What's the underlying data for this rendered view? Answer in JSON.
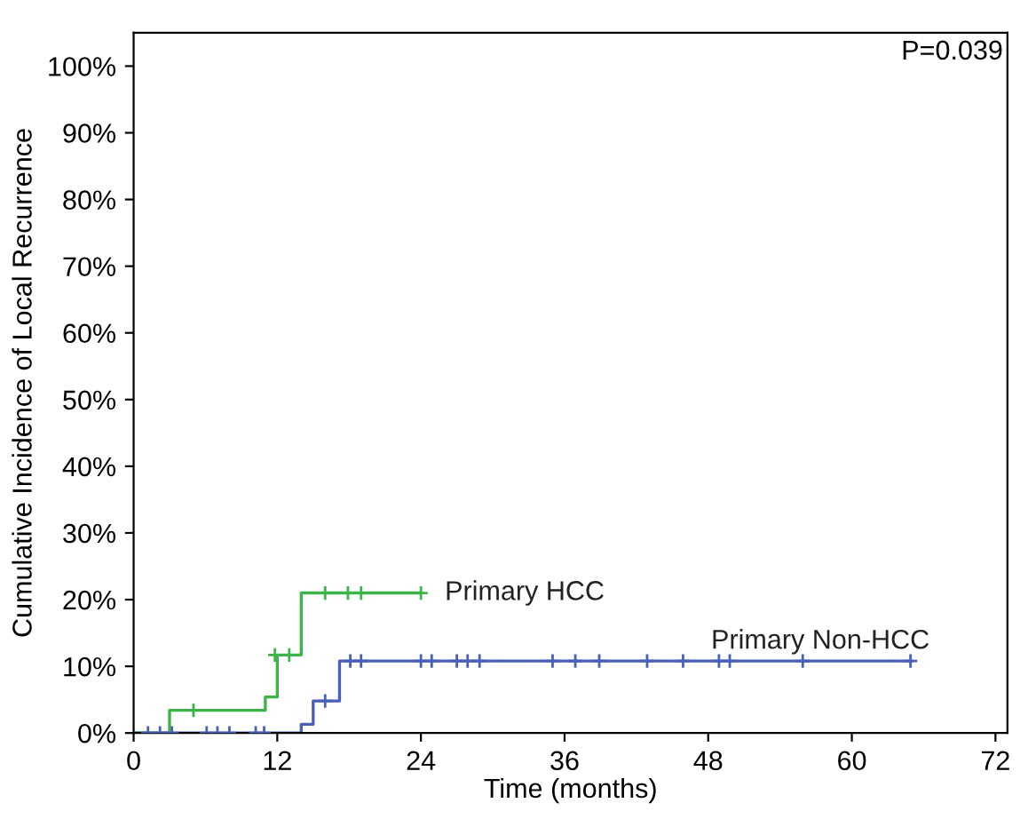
{
  "chart_data": {
    "type": "step",
    "xlabel": "Time (months)",
    "ylabel": "Cumulative Incidence of Local Recurrence",
    "xlim": [
      0,
      73
    ],
    "xticks": [
      0,
      12,
      24,
      36,
      48,
      60,
      72
    ],
    "ylim": [
      0,
      105
    ],
    "yticks": [
      {
        "value": 0,
        "label": "0%"
      },
      {
        "value": 10,
        "label": "10%"
      },
      {
        "value": 20,
        "label": "20%"
      },
      {
        "value": 30,
        "label": "30%"
      },
      {
        "value": 40,
        "label": "40%"
      },
      {
        "value": 50,
        "label": "50%"
      },
      {
        "value": 60,
        "label": "60%"
      },
      {
        "value": 70,
        "label": "70%"
      },
      {
        "value": 80,
        "label": "80%"
      },
      {
        "value": 90,
        "label": "90%"
      },
      {
        "value": 100,
        "label": "100%"
      }
    ],
    "grid": false,
    "legend": false,
    "annotations": [
      "P=0.039"
    ],
    "series": [
      {
        "name": "Primary HCC",
        "color": "#3cb44a",
        "x": [
          0,
          3,
          11,
          12,
          14,
          24
        ],
        "values": [
          0,
          3.4,
          5.4,
          11.7,
          21,
          21
        ]
      },
      {
        "name": "Primary Non-HCC",
        "color": "#4a5fb8",
        "x": [
          0,
          14,
          15,
          17.2,
          65
        ],
        "values": [
          0,
          1.3,
          4.8,
          10.8,
          10.8
        ]
      },
      {
        "type": "scatter",
        "marker": "cross",
        "color": "#3cb44a",
        "x": [
          5,
          11.8,
          13,
          16,
          17.9,
          19,
          24
        ],
        "values": [
          3.4,
          11.7,
          11.7,
          21,
          21,
          21,
          21
        ]
      },
      {
        "type": "scatter",
        "marker": "cross",
        "color": "#4a5fb8",
        "x": [
          1.2,
          2.2,
          3.2,
          6.1,
          7,
          8,
          10.2,
          10.9,
          16,
          18.1,
          19,
          24,
          24.9,
          27,
          27.9,
          28.9,
          35,
          36.9,
          38.9,
          42.9,
          45.9,
          48.9,
          49.8,
          55.9,
          64.9
        ],
        "values": [
          0,
          0,
          0,
          0,
          0,
          0,
          0,
          0,
          4.8,
          10.8,
          10.8,
          10.8,
          10.8,
          10.8,
          10.8,
          10.8,
          10.8,
          10.8,
          10.8,
          10.8,
          10.8,
          10.8,
          10.8,
          10.8,
          10.8
        ]
      }
    ]
  }
}
